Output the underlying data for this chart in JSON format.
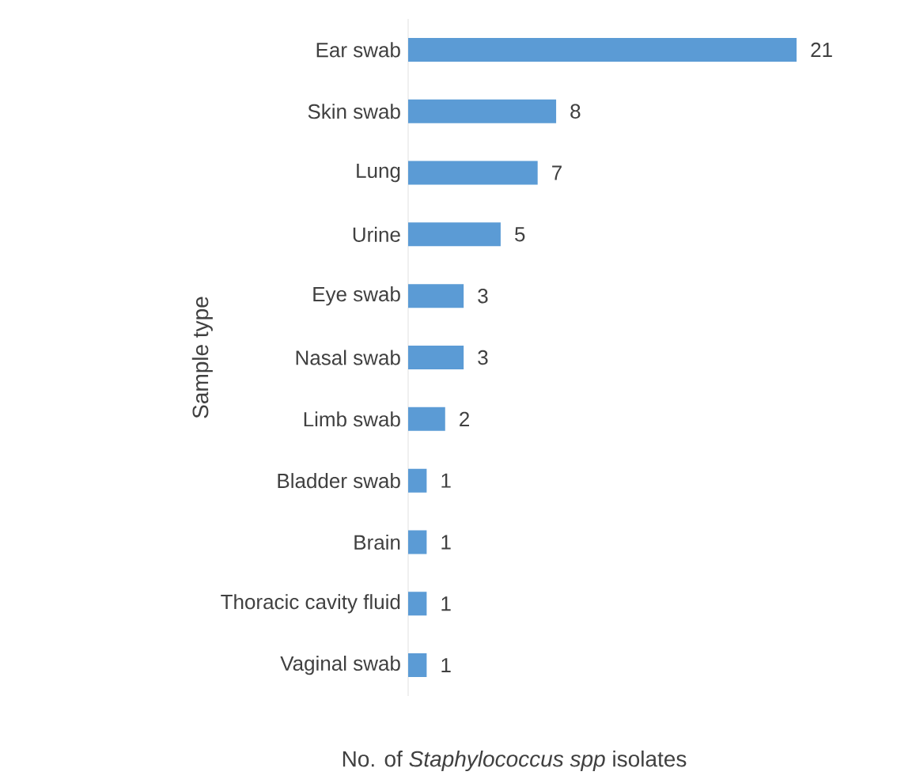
{
  "chart_data": {
    "type": "bar",
    "orientation": "horizontal",
    "xlabel": "No. of *Staphylococcus spp* isolates",
    "ylabel": "Sample type",
    "categories": [
      "Ear swab",
      "Skin swab",
      "Lung",
      "Urine",
      "Eye swab",
      "Nasal swab",
      "Limb swab",
      "Bladder swab",
      "Brain",
      "Thoracic cavity fluid",
      "Vaginal swab"
    ],
    "values": [
      21,
      8,
      7,
      5,
      3,
      3,
      2,
      1,
      1,
      1,
      1
    ],
    "color": "#5b9bd5",
    "data_labels": true
  }
}
